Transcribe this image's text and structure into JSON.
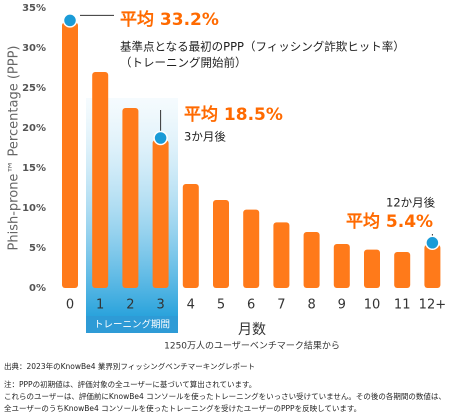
{
  "chart_data": {
    "type": "bar",
    "y_label": "Phish-prone™ Percentage (PPP)",
    "x_label": "月数",
    "x_sublabel": "1250万人のユーザーベンチマーク結果から",
    "highlight_label": "トレーニング期間",
    "categories": [
      "0",
      "1",
      "2",
      "3",
      "4",
      "5",
      "6",
      "7",
      "8",
      "9",
      "10",
      "11",
      "12+"
    ],
    "values": [
      33.2,
      27,
      22.5,
      18.5,
      13,
      11,
      9.8,
      8.2,
      7,
      5.5,
      4.8,
      4.5,
      5.4
    ],
    "value_labels": [
      "平均 33.2%",
      null,
      null,
      "平均 18.5%",
      null,
      null,
      null,
      null,
      null,
      null,
      null,
      null,
      "平均 5.4%"
    ],
    "color": "#ff7a1a",
    "ylim": [
      0,
      35
    ],
    "yticks": [
      {
        "value": 0,
        "label": "0%"
      },
      {
        "value": 5,
        "label": "5%"
      },
      {
        "value": 10,
        "label": "10%"
      },
      {
        "value": 15,
        "label": "15%"
      },
      {
        "value": 20,
        "label": "20%"
      },
      {
        "value": 25,
        "label": "25%"
      },
      {
        "value": 30,
        "label": "30%"
      },
      {
        "value": 35,
        "label": "35%"
      }
    ],
    "annotations": [
      "基準点となる最初のPPP（フィッシング詐欺ヒット率）",
      "（トレーニング開始前）",
      "3か月後",
      "12か月後"
    ],
    "notes": [
      "出典：2023年のKnowBe4 業界別フィッシングベンチマーキングレポート",
      "注：PPPの初期値は、評価対象の全ユーザーに基づいて算出されています。",
      "これらのユーザーは、評価前にKnowBe4 コンソールを使ったトレーニングをいっさい受けていません。その後の各期間の数値は、",
      "全ユーザーのうちKnowBe4 コンソールを使ったトレーニングを受けたユーザーのPPPを反映しています。"
    ]
  }
}
